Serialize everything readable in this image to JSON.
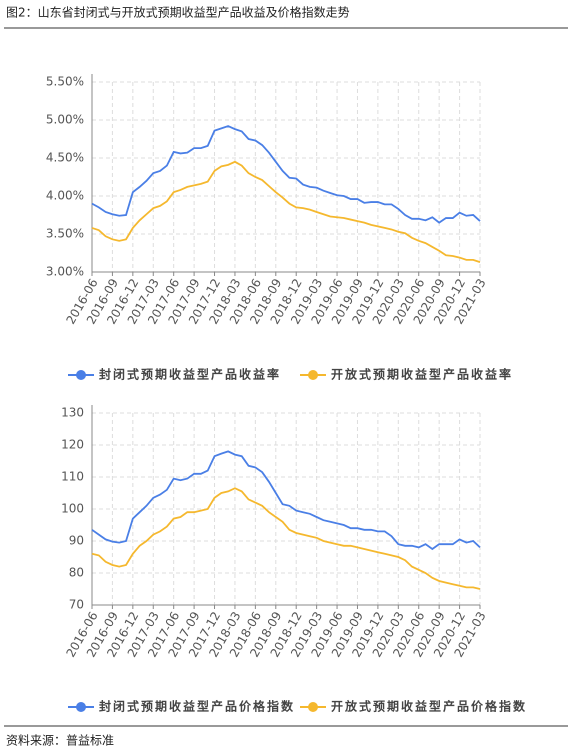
{
  "title": "图2：山东省封闭式与开放式预期收益型产品收益及价格指数走势",
  "source": "资料来源：普益标准",
  "chart_data": [
    {
      "type": "line",
      "categories": [
        "2016-06",
        null,
        null,
        "2016-09",
        null,
        null,
        "2016-12",
        null,
        null,
        "2017-03",
        null,
        null,
        "2017-06",
        null,
        null,
        "2017-09",
        null,
        null,
        "2017-12",
        null,
        null,
        "2018-03",
        null,
        null,
        "2018-06",
        null,
        null,
        "2018-09",
        null,
        null,
        "2018-12",
        null,
        null,
        "2019-03",
        null,
        null,
        "2019-06",
        null,
        null,
        "2019-09",
        null,
        null,
        "2019-12",
        null,
        null,
        "2020-03",
        null,
        null,
        "2020-06",
        null,
        null,
        "2020-09",
        null,
        null,
        "2020-12",
        null,
        null,
        "2021-03"
      ],
      "series": [
        {
          "name": "封闭式预期收益型产品收益率",
          "color": "#4a7fe6",
          "values": [
            3.9,
            3.85,
            3.79,
            3.76,
            3.74,
            3.75,
            4.05,
            4.12,
            4.2,
            4.3,
            4.33,
            4.4,
            4.58,
            4.56,
            4.57,
            4.63,
            4.63,
            4.66,
            4.86,
            4.89,
            4.92,
            4.88,
            4.85,
            4.75,
            4.73,
            4.67,
            4.57,
            4.45,
            4.33,
            4.24,
            4.23,
            4.15,
            4.12,
            4.11,
            4.07,
            4.04,
            4.01,
            4.0,
            3.96,
            3.96,
            3.91,
            3.92,
            3.92,
            3.89,
            3.89,
            3.83,
            3.75,
            3.7,
            3.7,
            3.68,
            3.72,
            3.65,
            3.71,
            3.71,
            3.78,
            3.74,
            3.75,
            3.67
          ]
        },
        {
          "name": "开放式预期收益型产品收益率",
          "color": "#f5b82e",
          "values": [
            3.58,
            3.55,
            3.47,
            3.43,
            3.41,
            3.43,
            3.58,
            3.68,
            3.76,
            3.84,
            3.87,
            3.93,
            4.05,
            4.08,
            4.12,
            4.14,
            4.16,
            4.19,
            4.33,
            4.39,
            4.41,
            4.45,
            4.4,
            4.3,
            4.25,
            4.21,
            4.13,
            4.05,
            3.98,
            3.9,
            3.85,
            3.84,
            3.82,
            3.79,
            3.76,
            3.73,
            3.72,
            3.71,
            3.69,
            3.67,
            3.65,
            3.62,
            3.6,
            3.58,
            3.56,
            3.53,
            3.51,
            3.45,
            3.41,
            3.38,
            3.33,
            3.28,
            3.22,
            3.21,
            3.19,
            3.16,
            3.16,
            3.13
          ]
        }
      ],
      "ylim": [
        3,
        5.5
      ],
      "yticks": [
        {
          "value": 3,
          "label": "3.00%"
        },
        {
          "value": 3.5,
          "label": "3.50%"
        },
        {
          "value": 4,
          "label": "4.00%"
        },
        {
          "value": 4.5,
          "label": "4.50%"
        },
        {
          "value": 5,
          "label": "5.00%"
        },
        {
          "value": 5.5,
          "label": "5.50%"
        }
      ],
      "grid": true
    },
    {
      "type": "line",
      "categories": [
        "2016-06",
        null,
        null,
        "2016-09",
        null,
        null,
        "2016-12",
        null,
        null,
        "2017-03",
        null,
        null,
        "2017-06",
        null,
        null,
        "2017-09",
        null,
        null,
        "2017-12",
        null,
        null,
        "2018-03",
        null,
        null,
        "2018-06",
        null,
        null,
        "2018-09",
        null,
        null,
        "2018-12",
        null,
        null,
        "2019-03",
        null,
        null,
        "2019-06",
        null,
        null,
        "2019-09",
        null,
        null,
        "2019-12",
        null,
        null,
        "2020-03",
        null,
        null,
        "2020-06",
        null,
        null,
        "2020-09",
        null,
        null,
        "2020-12",
        null,
        null,
        "2021-03"
      ],
      "series": [
        {
          "name": "封闭式预期收益型产品价格指数",
          "color": "#4a7fe6",
          "values": [
            93.5,
            92,
            90.5,
            89.8,
            89.5,
            90,
            97,
            99,
            101,
            103.5,
            104.5,
            106,
            109.5,
            109,
            109.5,
            111,
            111,
            112,
            116.5,
            117.3,
            118,
            117,
            116.5,
            113.5,
            113,
            111.5,
            108.5,
            105,
            101.5,
            101,
            99.5,
            99,
            98.5,
            97.5,
            96.5,
            96,
            95.5,
            95,
            94,
            94,
            93.5,
            93.5,
            93,
            93,
            91.5,
            89,
            88.5,
            88.5,
            88,
            89,
            87.5,
            89,
            89,
            89,
            90.5,
            89.5,
            90,
            88
          ]
        },
        {
          "name": "开放式预期收益型产品价格指数",
          "color": "#f5b82e",
          "values": [
            86,
            85.5,
            83.5,
            82.5,
            82,
            82.5,
            86,
            88.5,
            90,
            92,
            93,
            94.5,
            97,
            97.5,
            99,
            99,
            99.5,
            100,
            103.5,
            105,
            105.5,
            106.5,
            105.5,
            103,
            102,
            101,
            99,
            97.5,
            96,
            93.5,
            92.5,
            92,
            91.5,
            91,
            90,
            89.5,
            89,
            88.5,
            88.5,
            88,
            87.5,
            87,
            86.5,
            86,
            85.5,
            85,
            84,
            82,
            81,
            80,
            78.5,
            77.5,
            77,
            76.5,
            76,
            75.5,
            75.5,
            75
          ]
        }
      ],
      "ylim": [
        70,
        130
      ],
      "yticks": [
        70,
        80,
        90,
        100,
        110,
        120,
        130
      ],
      "grid": true
    }
  ]
}
